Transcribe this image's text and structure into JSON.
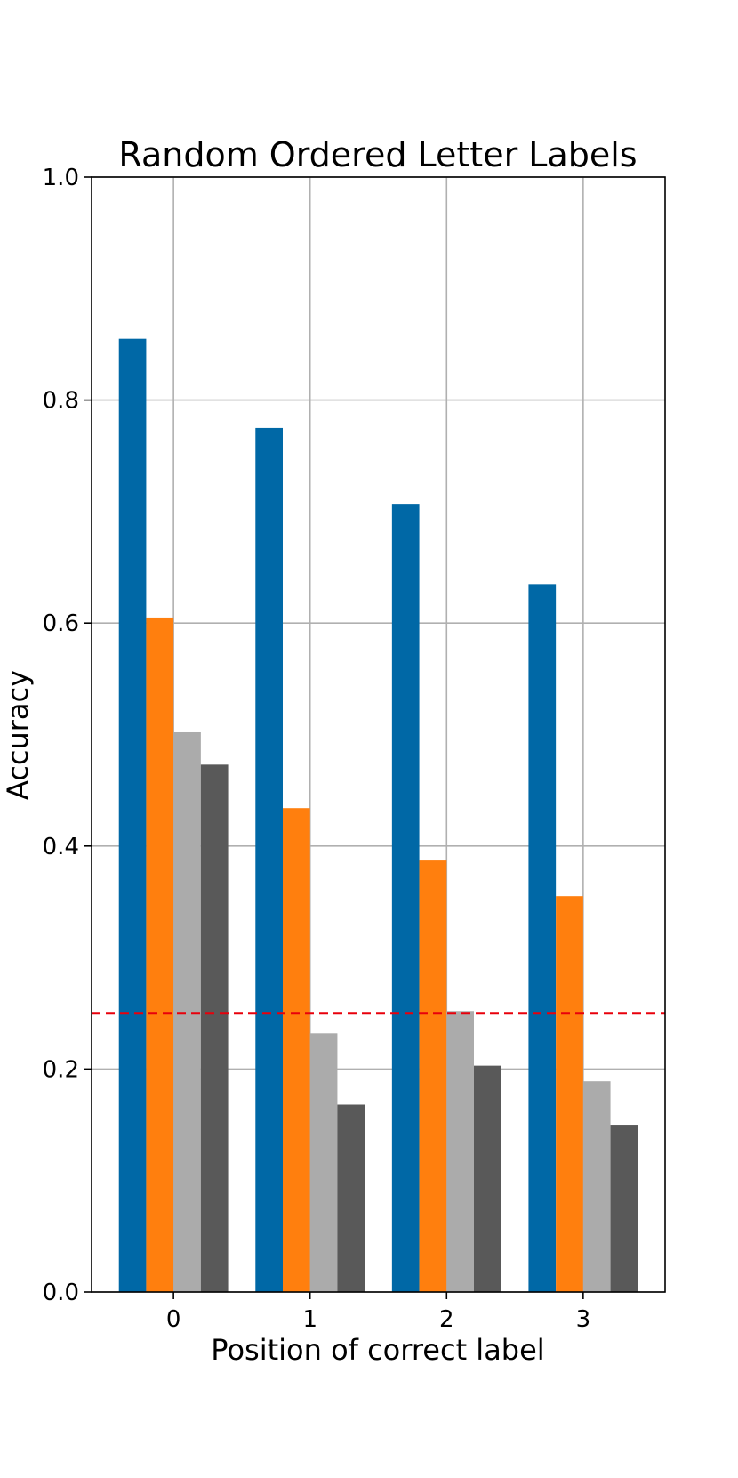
{
  "chart_data": {
    "type": "bar",
    "title": "Random Ordered Letter Labels",
    "xlabel": "Position of correct label",
    "ylabel": "Accuracy",
    "categories": [
      "0",
      "1",
      "2",
      "3"
    ],
    "ylim": [
      0,
      1.0
    ],
    "yticks": [
      0.0,
      0.2,
      0.4,
      0.6,
      0.8,
      1.0
    ],
    "ytick_labels": [
      "0.0",
      "0.2",
      "0.4",
      "0.6",
      "0.8",
      "1.0"
    ],
    "grid": true,
    "series": [
      {
        "color": "#0068a6",
        "values": [
          0.855,
          0.775,
          0.707,
          0.635
        ]
      },
      {
        "color": "#ff7f0e",
        "values": [
          0.605,
          0.434,
          0.387,
          0.355
        ]
      },
      {
        "color": "#ababab",
        "values": [
          0.502,
          0.232,
          0.252,
          0.189
        ]
      },
      {
        "color": "#595959",
        "values": [
          0.473,
          0.168,
          0.203,
          0.15
        ]
      }
    ],
    "reference_line": {
      "y": 0.25,
      "color": "#e8000b",
      "style": "dashed"
    }
  }
}
